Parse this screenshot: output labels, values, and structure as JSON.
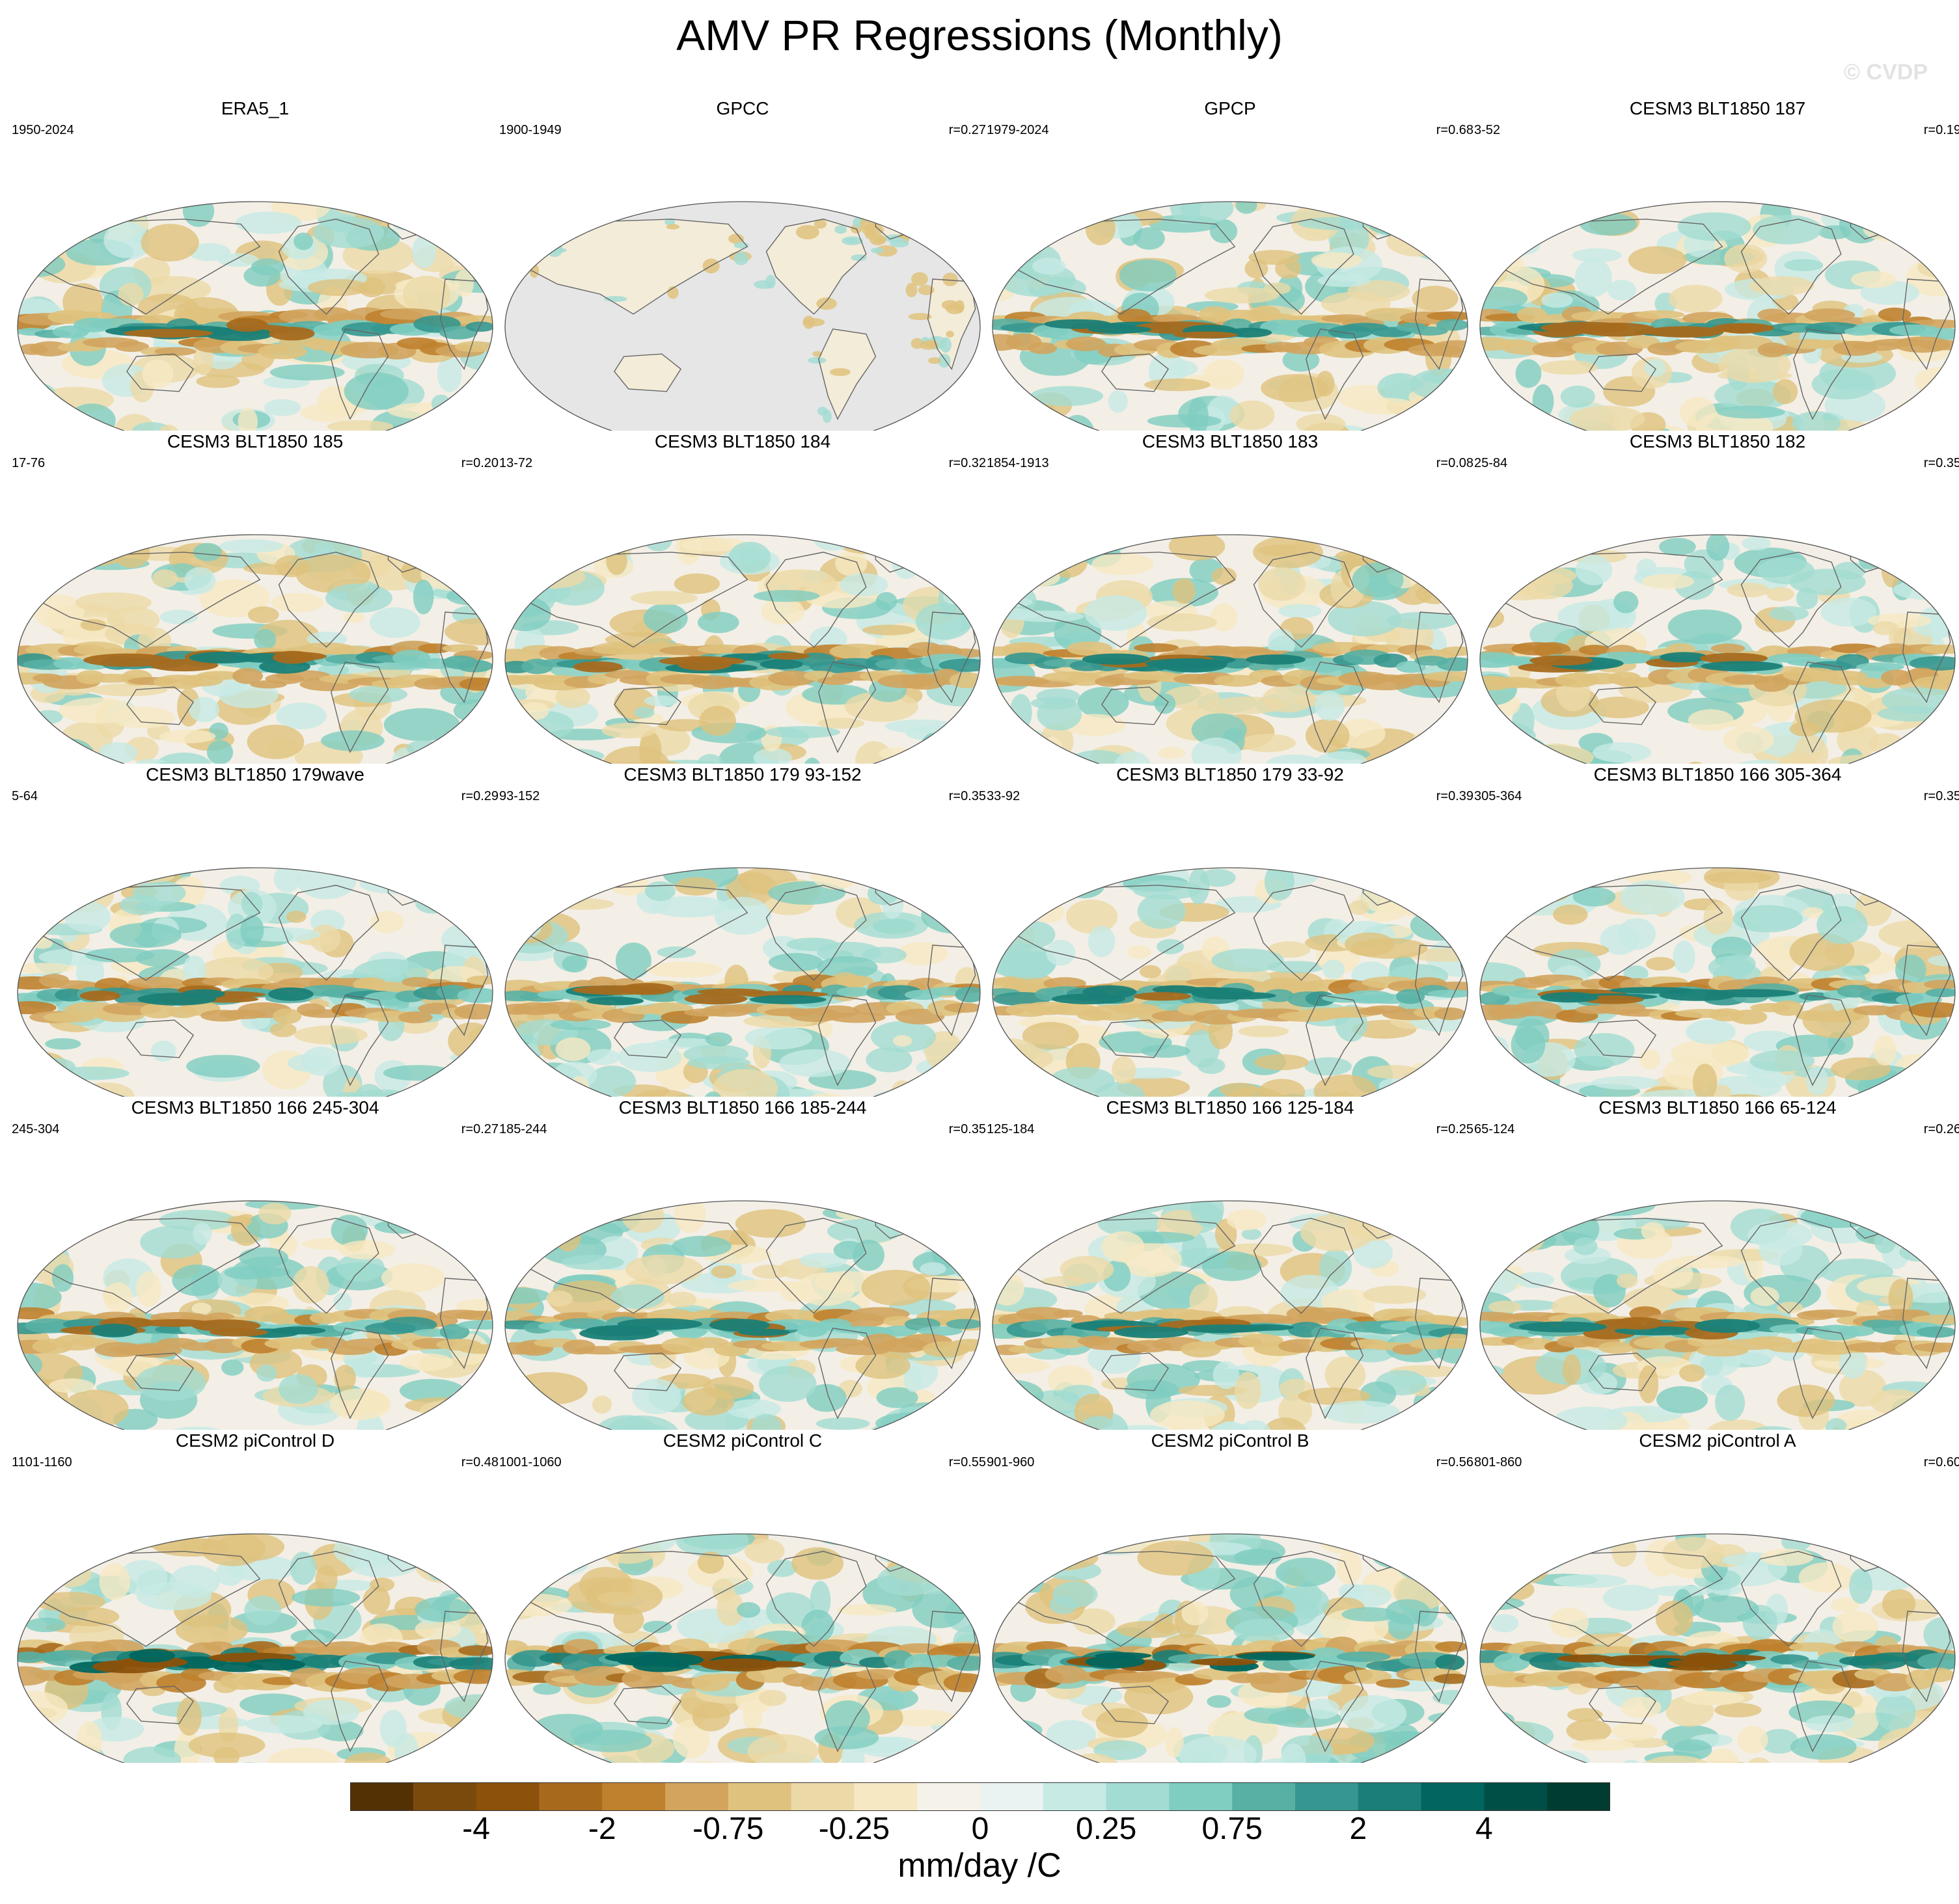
{
  "title": "AMV PR Regressions (Monthly)",
  "watermark": "© CVDP",
  "panels": [
    {
      "title": "ERA5_1",
      "years": "1950-2024",
      "r": "",
      "style": "obs"
    },
    {
      "title": "GPCC",
      "years": "1900-1949",
      "r": "r=0.27",
      "style": "land"
    },
    {
      "title": "GPCP",
      "years": "1979-2024",
      "r": "r=0.68",
      "style": "obs"
    },
    {
      "title": "CESM3 BLT1850 187",
      "years": "3-52",
      "r": "r=0.19",
      "style": "model"
    },
    {
      "title": "CESM3 BLT1850 185",
      "years": "17-76",
      "r": "r=0.20",
      "style": "model"
    },
    {
      "title": "CESM3 BLT1850 184",
      "years": "13-72",
      "r": "r=0.32",
      "style": "model"
    },
    {
      "title": "CESM3 BLT1850 183",
      "years": "1854-1913",
      "r": "r=0.08",
      "style": "model"
    },
    {
      "title": "CESM3 BLT1850 182",
      "years": "25-84",
      "r": "r=0.35",
      "style": "model"
    },
    {
      "title": "CESM3 BLT1850 179wave",
      "years": "5-64",
      "r": "r=0.29",
      "style": "model"
    },
    {
      "title": "CESM3 BLT1850 179 93-152",
      "years": "93-152",
      "r": "r=0.35",
      "style": "model"
    },
    {
      "title": "CESM3 BLT1850 179 33-92",
      "years": "33-92",
      "r": "r=0.39",
      "style": "model"
    },
    {
      "title": "CESM3 BLT1850 166 305-364",
      "years": "305-364",
      "r": "r=0.35",
      "style": "model"
    },
    {
      "title": "CESM3 BLT1850 166 245-304",
      "years": "245-304",
      "r": "r=0.27",
      "style": "model"
    },
    {
      "title": "CESM3 BLT1850 166 185-244",
      "years": "185-244",
      "r": "r=0.35",
      "style": "model"
    },
    {
      "title": "CESM3 BLT1850 166 125-184",
      "years": "125-184",
      "r": "r=0.25",
      "style": "model"
    },
    {
      "title": "CESM3 BLT1850 166 65-124",
      "years": "65-124",
      "r": "r=0.26",
      "style": "model"
    },
    {
      "title": "CESM2 piControl D",
      "years": "1101-1160",
      "r": "r=0.48",
      "style": "strong"
    },
    {
      "title": "CESM2 piControl C",
      "years": "1001-1060",
      "r": "r=0.55",
      "style": "strong"
    },
    {
      "title": "CESM2 piControl B",
      "years": "901-960",
      "r": "r=0.56",
      "style": "strong"
    },
    {
      "title": "CESM2 piControl A",
      "years": "801-860",
      "r": "r=0.60",
      "style": "strong"
    }
  ],
  "colorbar": {
    "colors": [
      "#543005",
      "#7a4a0d",
      "#8c510a",
      "#a76a1d",
      "#bf812d",
      "#d2a45e",
      "#dfc27d",
      "#ecd9a8",
      "#f6e8c3",
      "#f5f2ea",
      "#eaf3f1",
      "#c7eae5",
      "#a3dcd2",
      "#80cdc1",
      "#58b0a4",
      "#35978f",
      "#1a7f77",
      "#01665e",
      "#004f46",
      "#003c30"
    ],
    "labels": [
      "-4",
      "-2",
      "-0.75",
      "-0.25",
      "0",
      "0.25",
      "0.75",
      "2",
      "4"
    ],
    "label_positions": [
      2,
      4,
      6,
      8,
      10,
      12,
      14,
      16,
      18
    ],
    "unit": "mm/day /C"
  },
  "palette": {
    "ocean_gray": "#e6e6e6",
    "coast": "#666666",
    "neutral": "#f3efe6"
  }
}
